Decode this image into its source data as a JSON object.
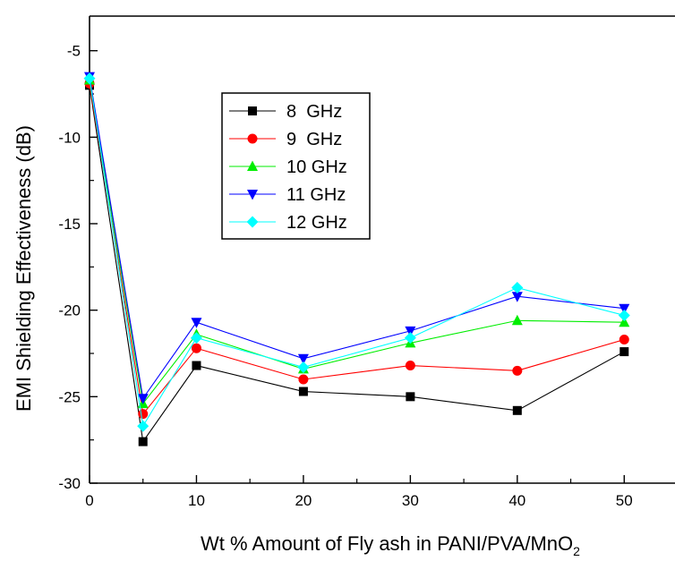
{
  "chart_data": {
    "type": "line",
    "title": "",
    "xlabel": "Wt % Amount of Fly ash in PANI/PVA/MnO",
    "xlabel_subscript": "2",
    "ylabel": "EMI Shielding Effectiveness (dB)",
    "xlim": [
      0,
      55
    ],
    "ylim": [
      -30,
      -3
    ],
    "x_ticks": [
      0,
      10,
      20,
      30,
      40,
      50
    ],
    "y_ticks": [
      -30,
      -25,
      -20,
      -15,
      -10,
      -5
    ],
    "grid": false,
    "legend_position": "upper-middle",
    "x": [
      0,
      5,
      10,
      20,
      30,
      40,
      50
    ],
    "series": [
      {
        "name": "8  GHz",
        "marker": "square",
        "color": "#000000",
        "values": [
          -7.0,
          -27.6,
          -23.2,
          -24.7,
          -25.0,
          -25.8,
          -22.4
        ]
      },
      {
        "name": "9  GHz",
        "marker": "circle",
        "color": "#ff0000",
        "values": [
          -6.9,
          -26.0,
          -22.2,
          -24.0,
          -23.2,
          -23.5,
          -21.7
        ]
      },
      {
        "name": "10 GHz",
        "marker": "triangle-up",
        "color": "#00ee00",
        "values": [
          -6.7,
          -25.4,
          -21.4,
          -23.4,
          -21.9,
          -20.6,
          -20.7
        ]
      },
      {
        "name": "11 GHz",
        "marker": "triangle-down",
        "color": "#0000ff",
        "values": [
          -6.5,
          -25.1,
          -20.7,
          -22.8,
          -21.2,
          -19.2,
          -19.9
        ]
      },
      {
        "name": "12 GHz",
        "marker": "diamond",
        "color": "#00ffff",
        "values": [
          -6.6,
          -26.7,
          -21.6,
          -23.3,
          -21.6,
          -18.7,
          -20.3
        ]
      }
    ]
  }
}
